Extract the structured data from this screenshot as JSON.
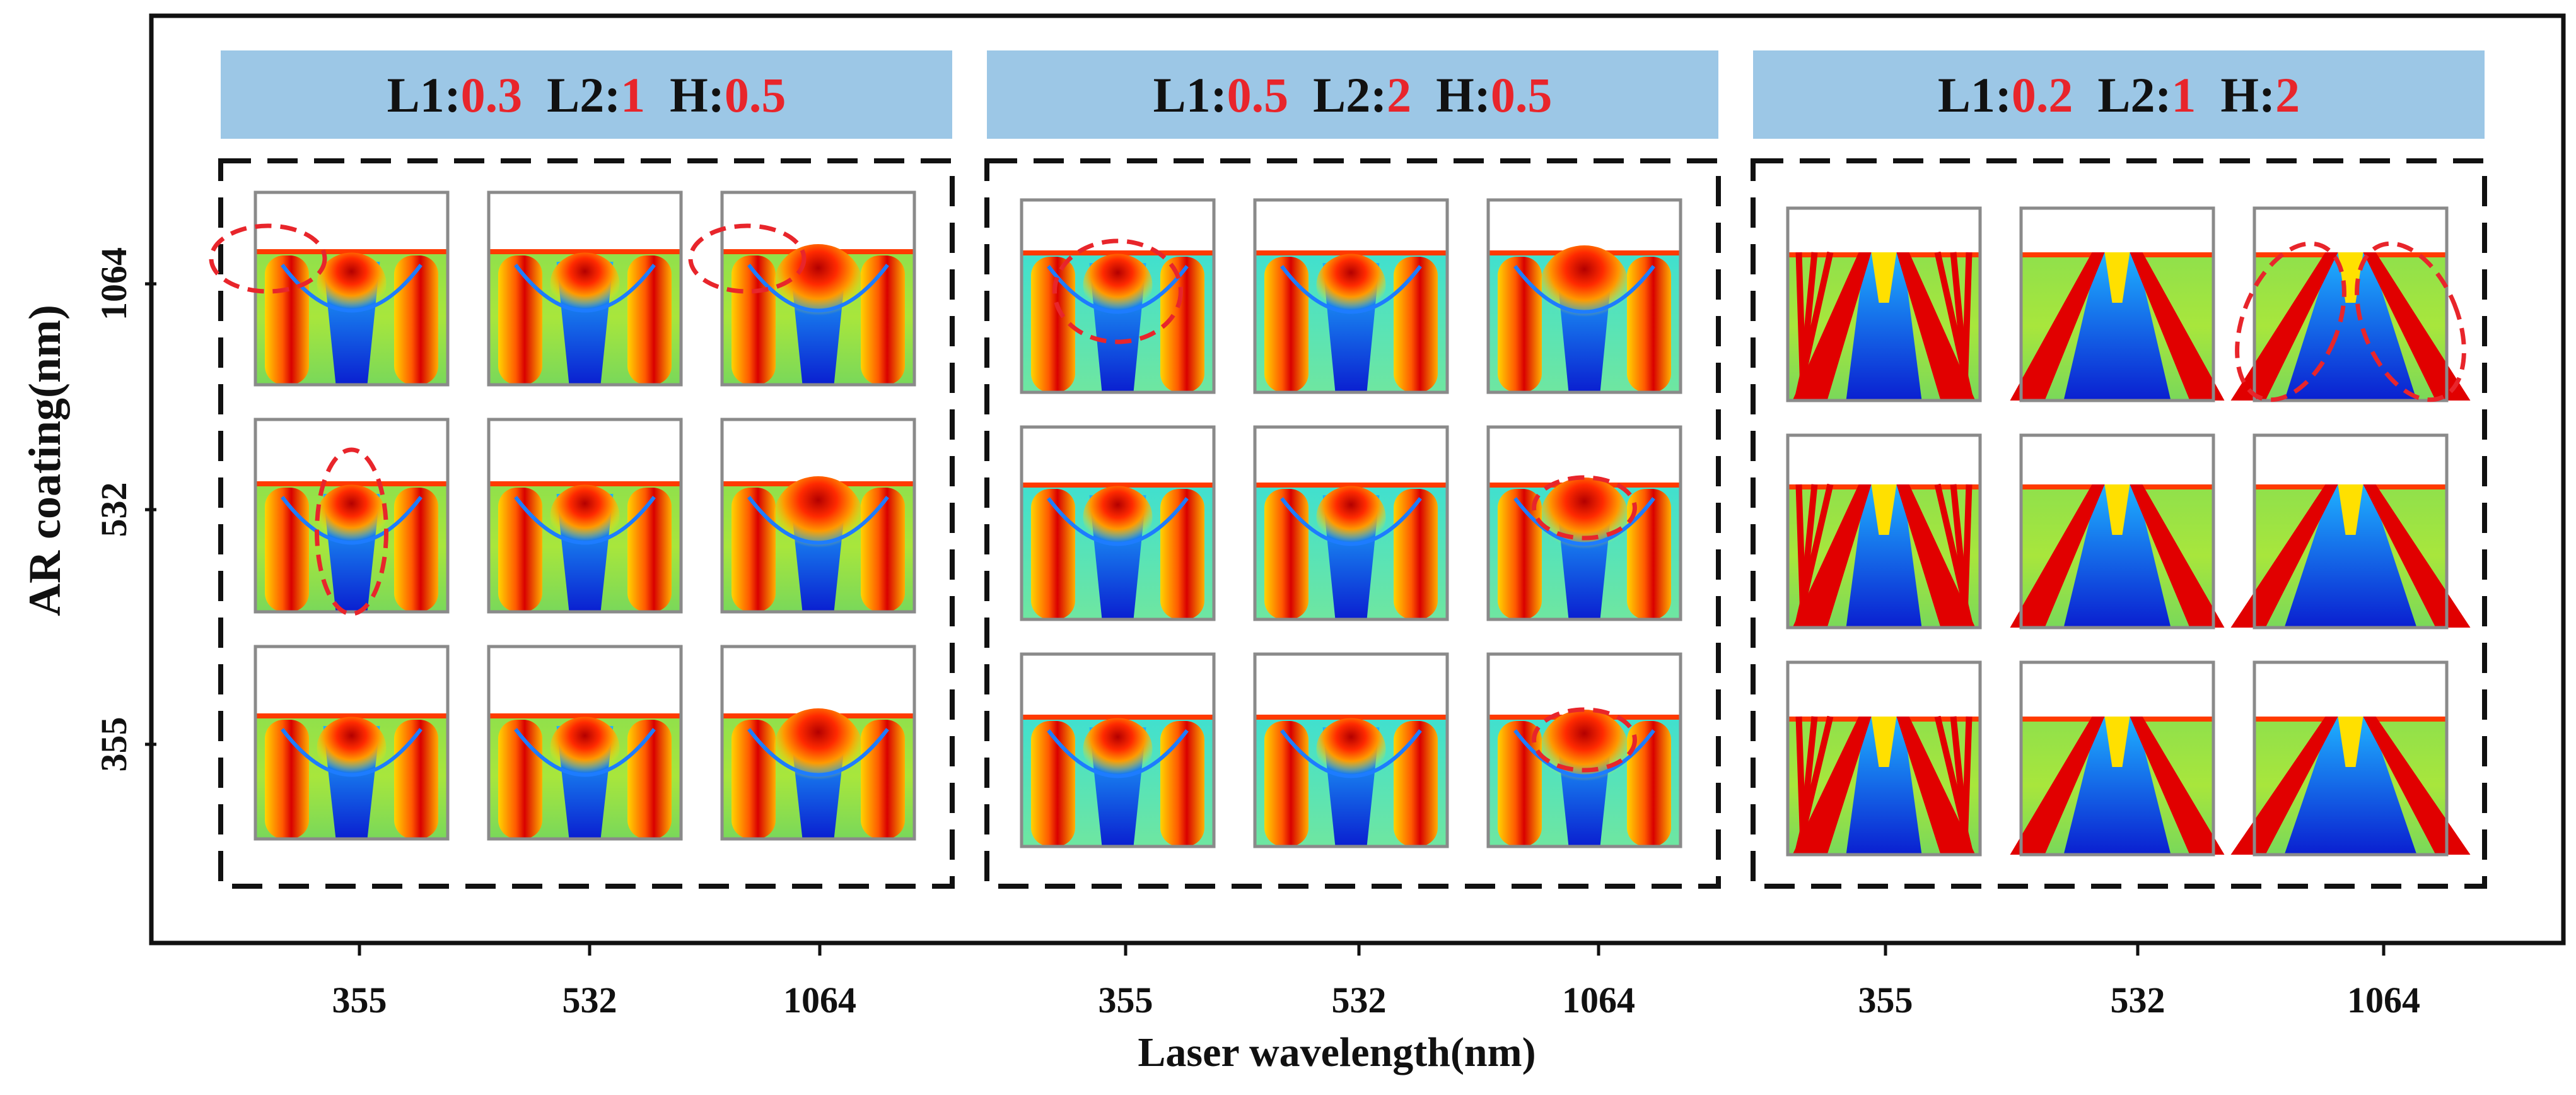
{
  "figure": {
    "y_axis_label": "AR coating(nm)",
    "x_axis_label": "Laser wavelength(nm)",
    "y_ticks": [
      "1064",
      "532",
      "355"
    ],
    "x_ticks": [
      "355",
      "532",
      "1064"
    ],
    "colors": {
      "header_bg": "#9cc7e6",
      "param_value": "#e8252b",
      "text": "#111111",
      "highlight_ellipse": "#e8252b",
      "dashed_box": "#111111"
    },
    "colormap": "jet"
  },
  "groups": [
    {
      "params": [
        {
          "name": "L1:",
          "value": "0.3"
        },
        {
          "name": "L2:",
          "value": "1"
        },
        {
          "name": "H:",
          "value": "0.5"
        }
      ],
      "highlighted_cells": [
        "1064-355",
        "1064-1064",
        "532-355"
      ]
    },
    {
      "params": [
        {
          "name": "L1:",
          "value": "0.5"
        },
        {
          "name": "L2:",
          "value": "2"
        },
        {
          "name": "H:",
          "value": "0.5"
        }
      ],
      "highlighted_cells": [
        "1064-355",
        "532-1064",
        "355-1064"
      ]
    },
    {
      "params": [
        {
          "name": "L1:",
          "value": "0.2"
        },
        {
          "name": "L2:",
          "value": "1"
        },
        {
          "name": "H:",
          "value": "2"
        }
      ],
      "highlighted_cells": [
        "1064-1064"
      ]
    }
  ]
}
